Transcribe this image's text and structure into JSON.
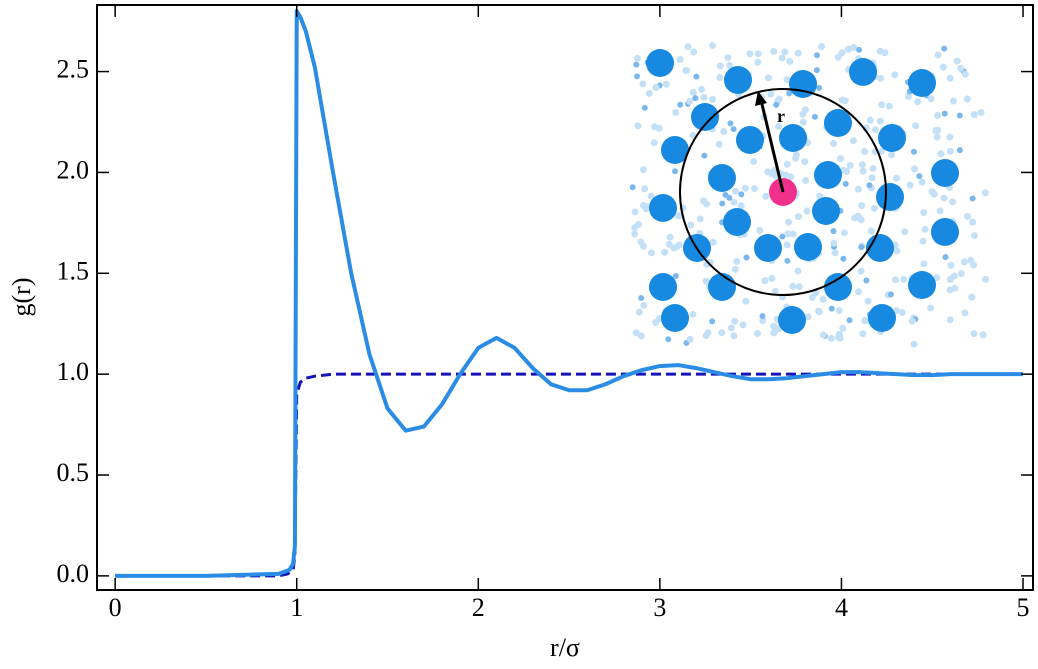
{
  "chart_data": {
    "type": "line",
    "xlabel": "r/σ",
    "ylabel": "g(r)",
    "inset_label": "r",
    "xlim": [
      -0.1,
      5.055
    ],
    "ylim": [
      -0.07,
      2.83
    ],
    "xticks": [
      0,
      1,
      2,
      3,
      4,
      5
    ],
    "yticks": [
      {
        "value": 0,
        "label": "0.0"
      },
      0.5,
      {
        "value": 1,
        "label": "1.0"
      },
      1.5,
      {
        "value": 2,
        "label": "2.0"
      },
      2.5
    ],
    "series": [
      {
        "color": "#2b8ce6",
        "dash": false,
        "x": [
          0,
          0.5,
          0.9,
          0.96,
          0.98,
          0.99,
          1.0,
          1.02,
          1.05,
          1.1,
          1.2,
          1.3,
          1.4,
          1.5,
          1.6,
          1.7,
          1.8,
          1.9,
          2.0,
          2.1,
          2.2,
          2.3,
          2.4,
          2.5,
          2.6,
          2.7,
          2.8,
          2.9,
          3.0,
          3.1,
          3.2,
          3.3,
          3.4,
          3.5,
          3.6,
          3.7,
          3.8,
          3.9,
          4.0,
          4.1,
          4.2,
          4.3,
          4.4,
          4.5,
          4.6,
          4.7,
          4.8,
          4.9,
          5.0
        ],
        "values": [
          0.0,
          0.0,
          0.01,
          0.03,
          0.06,
          0.15,
          2.8,
          2.77,
          2.7,
          2.52,
          2.0,
          1.5,
          1.1,
          0.83,
          0.72,
          0.74,
          0.85,
          1.0,
          1.13,
          1.18,
          1.13,
          1.03,
          0.95,
          0.92,
          0.92,
          0.95,
          0.99,
          1.02,
          1.04,
          1.045,
          1.03,
          1.01,
          0.99,
          0.975,
          0.975,
          0.98,
          0.99,
          1.0,
          1.01,
          1.01,
          1.005,
          1.0,
          0.995,
          0.995,
          1.0,
          1.0,
          1.0,
          1.0,
          1.0
        ]
      },
      {
        "color": "#1414b8",
        "dash": true,
        "x": [
          0,
          0.5,
          0.9,
          0.95,
          0.98,
          0.99,
          1.0,
          1.02,
          1.05,
          1.1,
          1.2,
          2.0,
          3.0,
          4.0,
          5.0
        ],
        "values": [
          0.0,
          0.0,
          0.0,
          0.01,
          0.03,
          0.1,
          0.9,
          0.96,
          0.98,
          0.99,
          1.0,
          1.0,
          1.0,
          1.0,
          1.0
        ]
      }
    ]
  }
}
